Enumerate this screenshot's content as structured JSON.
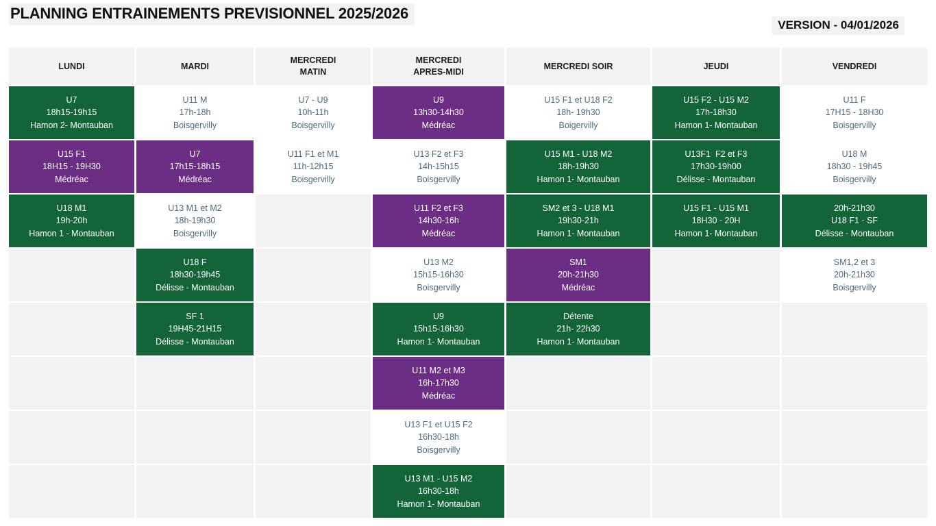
{
  "page": {
    "title": "PLANNING ENTRAINEMENTS PREVISIONNEL 2025/2026",
    "version": "VERSION - 04/01/2026"
  },
  "colors": {
    "green": "#14643a",
    "purple": "#6c2e85",
    "plain_bg": "#ffffff",
    "empty_bg": "#f2f2f2",
    "header_bg": "#f2f2f2",
    "colored_text": "#ffffff",
    "plain_text": "#4a6b7e"
  },
  "table": {
    "columns": [
      {
        "id": "lundi",
        "label": "LUNDI"
      },
      {
        "id": "mardi",
        "label": "MARDI"
      },
      {
        "id": "mercredi-matin",
        "label": "MERCREDI\nMATIN"
      },
      {
        "id": "mercredi-apres-midi",
        "label": "MERCREDI\nAPRES-MIDI"
      },
      {
        "id": "mercredi-soir",
        "label": "MERCREDI SOIR"
      },
      {
        "id": "jeudi",
        "label": "JEUDI"
      },
      {
        "id": "vendredi",
        "label": "VENDREDI"
      }
    ],
    "rows": [
      {
        "cells": [
          {
            "type": "green",
            "lines": [
              "U7",
              "18h15-19h15",
              "Hamon 2- Montauban"
            ]
          },
          {
            "type": "plain",
            "lines": [
              "U11 M",
              "17h-18h",
              "Boisgervilly"
            ]
          },
          {
            "type": "plain",
            "lines": [
              "U7 - U9",
              "10h-11h",
              "Boisgervilly"
            ]
          },
          {
            "type": "purple",
            "lines": [
              "U9",
              "13h30-14h30",
              "Médréac"
            ]
          },
          {
            "type": "plain",
            "lines": [
              "U15 F1 et U18 F2",
              "18h- 19h30",
              "Boigervilly"
            ]
          },
          {
            "type": "green",
            "lines": [
              "U15 F2 - U15 M2",
              "17h-18h30",
              "Hamon 1- Montauban"
            ]
          },
          {
            "type": "plain",
            "lines": [
              "U11 F",
              "17H15 - 18H30",
              "Boisgervilly"
            ]
          }
        ]
      },
      {
        "cells": [
          {
            "type": "purple",
            "lines": [
              "U15 F1",
              "18H15 - 19H30",
              "Médréac"
            ]
          },
          {
            "type": "purple",
            "lines": [
              "U7",
              "17h15-18h15",
              "Médréac"
            ]
          },
          {
            "type": "plain",
            "lines": [
              "U11 F1 et M1",
              "11h-12h15",
              "Boisgervilly"
            ]
          },
          {
            "type": "plain",
            "lines": [
              "U13 F2 et F3",
              "14h-15h15",
              "Boisgervilly"
            ]
          },
          {
            "type": "green",
            "lines": [
              "U15 M1 - U18 M2",
              "18h-19h30",
              "Hamon 1- Montauban"
            ]
          },
          {
            "type": "green",
            "lines": [
              "U13F1  F2 et F3",
              "17h30-19h00",
              "Délisse - Montauban"
            ]
          },
          {
            "type": "plain",
            "lines": [
              "U18 M",
              "18h30 - 19h45",
              "Boisgervilly"
            ]
          }
        ]
      },
      {
        "cells": [
          {
            "type": "green",
            "lines": [
              "U18 M1",
              "19h-20h",
              "Hamon 1 - Montauban"
            ]
          },
          {
            "type": "plain",
            "lines": [
              "U13 M1 et M2",
              "18h-19h30",
              "Boisgervilly"
            ]
          },
          {
            "type": "empty",
            "lines": []
          },
          {
            "type": "purple",
            "lines": [
              "U11 F2 et F3",
              "14h30-16h",
              "Médréac"
            ]
          },
          {
            "type": "green",
            "lines": [
              "SM2 et 3 - U18 M1",
              "19h30-21h",
              "Hamon 1- Montauban"
            ]
          },
          {
            "type": "green",
            "lines": [
              "U15 F1 - U15 M1",
              "18H30 - 20H",
              "Hamon 1- Montauban"
            ]
          },
          {
            "type": "green",
            "lines": [
              "20h-21h30",
              "U18 F1 - SF",
              "Délisse - Montauban"
            ]
          }
        ]
      },
      {
        "cells": [
          {
            "type": "empty",
            "lines": []
          },
          {
            "type": "green",
            "lines": [
              "U18 F",
              "18h30-19h45",
              "Délisse - Montauban"
            ]
          },
          {
            "type": "empty",
            "lines": []
          },
          {
            "type": "plain",
            "lines": [
              "U13 M2",
              "15h15-16h30",
              "Boisgervilly"
            ]
          },
          {
            "type": "purple",
            "lines": [
              "SM1",
              "20h-21h30",
              "Médréac"
            ]
          },
          {
            "type": "empty",
            "lines": []
          },
          {
            "type": "plain",
            "lines": [
              "SM1,2 et 3",
              "20h-21h30",
              "Boisgervilly"
            ]
          }
        ]
      },
      {
        "cells": [
          {
            "type": "empty",
            "lines": []
          },
          {
            "type": "green",
            "lines": [
              "SF 1",
              "19H45-21H15",
              "Délisse - Montauban"
            ]
          },
          {
            "type": "empty",
            "lines": []
          },
          {
            "type": "green",
            "lines": [
              "U9",
              "15h15-16h30",
              "Hamon 1- Montauban"
            ]
          },
          {
            "type": "green",
            "lines": [
              "Détente",
              "21h- 22h30",
              "Hamon 1- Montauban"
            ]
          },
          {
            "type": "empty",
            "lines": []
          },
          {
            "type": "empty",
            "lines": []
          }
        ]
      },
      {
        "cells": [
          {
            "type": "empty",
            "lines": []
          },
          {
            "type": "empty",
            "lines": []
          },
          {
            "type": "empty",
            "lines": []
          },
          {
            "type": "purple",
            "lines": [
              "U11 M2 et M3",
              "16h-17h30",
              "Médréac"
            ]
          },
          {
            "type": "empty",
            "lines": []
          },
          {
            "type": "empty",
            "lines": []
          },
          {
            "type": "empty",
            "lines": []
          }
        ]
      },
      {
        "cells": [
          {
            "type": "empty",
            "lines": []
          },
          {
            "type": "empty",
            "lines": []
          },
          {
            "type": "empty",
            "lines": []
          },
          {
            "type": "plain",
            "lines": [
              "U13 F1 et U15 F2",
              "16h30-18h",
              "Boisgervilly"
            ]
          },
          {
            "type": "empty",
            "lines": []
          },
          {
            "type": "empty",
            "lines": []
          },
          {
            "type": "empty",
            "lines": []
          }
        ]
      },
      {
        "cells": [
          {
            "type": "empty",
            "lines": []
          },
          {
            "type": "empty",
            "lines": []
          },
          {
            "type": "empty",
            "lines": []
          },
          {
            "type": "green",
            "lines": [
              "U13 M1 - U15 M2",
              "16h30-18h",
              "Hamon 1- Montauban"
            ]
          },
          {
            "type": "empty",
            "lines": []
          },
          {
            "type": "empty",
            "lines": []
          },
          {
            "type": "empty",
            "lines": []
          }
        ]
      }
    ]
  }
}
